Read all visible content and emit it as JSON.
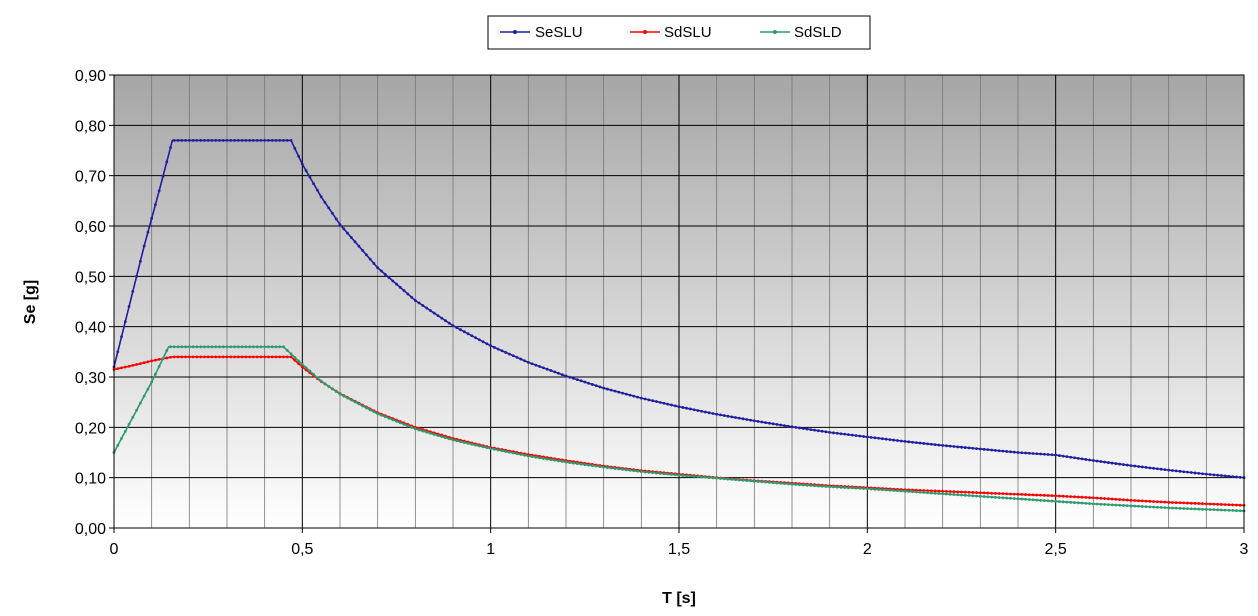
{
  "chart_data": {
    "type": "line",
    "xlabel": "T [s]",
    "ylabel": "Se [g]",
    "xlim": [
      0,
      3
    ],
    "ylim": [
      0,
      0.9
    ],
    "x_ticks": [
      "0",
      "0,5",
      "1",
      "1,5",
      "2",
      "2,5",
      "3"
    ],
    "x_tick_values": [
      0,
      0.5,
      1,
      1.5,
      2,
      2.5,
      3
    ],
    "y_ticks": [
      "0,00",
      "0,10",
      "0,20",
      "0,30",
      "0,40",
      "0,50",
      "0,60",
      "0,70",
      "0,80",
      "0,90"
    ],
    "y_tick_values": [
      0,
      0.1,
      0.2,
      0.3,
      0.4,
      0.5,
      0.6,
      0.7,
      0.8,
      0.9
    ],
    "grid": true,
    "legend_position": "top-center",
    "series": [
      {
        "name": "SeSLU",
        "color": "#1f1f9f",
        "points": [
          [
            0.0,
            0.32
          ],
          [
            0.04,
            0.44
          ],
          [
            0.08,
            0.56
          ],
          [
            0.12,
            0.67
          ],
          [
            0.155,
            0.77
          ],
          [
            0.2,
            0.77
          ],
          [
            0.3,
            0.77
          ],
          [
            0.4,
            0.77
          ],
          [
            0.47,
            0.77
          ],
          [
            0.5,
            0.723
          ],
          [
            0.55,
            0.658
          ],
          [
            0.6,
            0.603
          ],
          [
            0.7,
            0.517
          ],
          [
            0.8,
            0.452
          ],
          [
            0.9,
            0.402
          ],
          [
            1.0,
            0.362
          ],
          [
            1.1,
            0.329
          ],
          [
            1.2,
            0.302
          ],
          [
            1.3,
            0.278
          ],
          [
            1.4,
            0.258
          ],
          [
            1.5,
            0.241
          ],
          [
            1.6,
            0.226
          ],
          [
            1.7,
            0.213
          ],
          [
            1.8,
            0.201
          ],
          [
            1.9,
            0.19
          ],
          [
            2.0,
            0.181
          ],
          [
            2.1,
            0.172
          ],
          [
            2.2,
            0.164
          ],
          [
            2.3,
            0.157
          ],
          [
            2.4,
            0.15
          ],
          [
            2.5,
            0.145
          ],
          [
            2.6,
            0.134
          ],
          [
            2.7,
            0.124
          ],
          [
            2.8,
            0.115
          ],
          [
            2.9,
            0.107
          ],
          [
            3.0,
            0.1
          ]
        ]
      },
      {
        "name": "SdSLU",
        "color": "#ff0000",
        "points": [
          [
            0.0,
            0.315
          ],
          [
            0.05,
            0.323
          ],
          [
            0.1,
            0.332
          ],
          [
            0.155,
            0.34
          ],
          [
            0.2,
            0.34
          ],
          [
            0.3,
            0.34
          ],
          [
            0.4,
            0.34
          ],
          [
            0.47,
            0.34
          ],
          [
            0.5,
            0.32
          ],
          [
            0.55,
            0.291
          ],
          [
            0.6,
            0.267
          ],
          [
            0.7,
            0.229
          ],
          [
            0.8,
            0.2
          ],
          [
            0.9,
            0.178
          ],
          [
            1.0,
            0.16
          ],
          [
            1.1,
            0.146
          ],
          [
            1.2,
            0.134
          ],
          [
            1.3,
            0.123
          ],
          [
            1.4,
            0.114
          ],
          [
            1.5,
            0.107
          ],
          [
            1.6,
            0.1
          ],
          [
            1.7,
            0.094
          ],
          [
            1.8,
            0.089
          ],
          [
            1.9,
            0.084
          ],
          [
            2.0,
            0.08
          ],
          [
            2.1,
            0.076
          ],
          [
            2.2,
            0.073
          ],
          [
            2.3,
            0.07
          ],
          [
            2.4,
            0.067
          ],
          [
            2.5,
            0.064
          ],
          [
            2.6,
            0.06
          ],
          [
            2.7,
            0.055
          ],
          [
            2.8,
            0.051
          ],
          [
            2.9,
            0.048
          ],
          [
            3.0,
            0.045
          ]
        ]
      },
      {
        "name": "SdSLD",
        "color": "#2e9a6e",
        "points": [
          [
            0.0,
            0.15
          ],
          [
            0.05,
            0.22
          ],
          [
            0.1,
            0.29
          ],
          [
            0.145,
            0.36
          ],
          [
            0.2,
            0.36
          ],
          [
            0.3,
            0.36
          ],
          [
            0.4,
            0.36
          ],
          [
            0.45,
            0.36
          ],
          [
            0.5,
            0.325
          ],
          [
            0.55,
            0.292
          ],
          [
            0.6,
            0.266
          ],
          [
            0.7,
            0.227
          ],
          [
            0.8,
            0.197
          ],
          [
            0.9,
            0.175
          ],
          [
            1.0,
            0.158
          ],
          [
            1.1,
            0.143
          ],
          [
            1.2,
            0.131
          ],
          [
            1.3,
            0.121
          ],
          [
            1.4,
            0.112
          ],
          [
            1.5,
            0.105
          ],
          [
            1.6,
            0.099
          ],
          [
            1.7,
            0.093
          ],
          [
            1.8,
            0.087
          ],
          [
            1.9,
            0.082
          ],
          [
            2.0,
            0.078
          ],
          [
            2.1,
            0.073
          ],
          [
            2.2,
            0.068
          ],
          [
            2.3,
            0.063
          ],
          [
            2.4,
            0.058
          ],
          [
            2.5,
            0.053
          ],
          [
            2.6,
            0.048
          ],
          [
            2.7,
            0.044
          ],
          [
            2.8,
            0.04
          ],
          [
            2.9,
            0.037
          ],
          [
            3.0,
            0.034
          ]
        ]
      }
    ]
  }
}
